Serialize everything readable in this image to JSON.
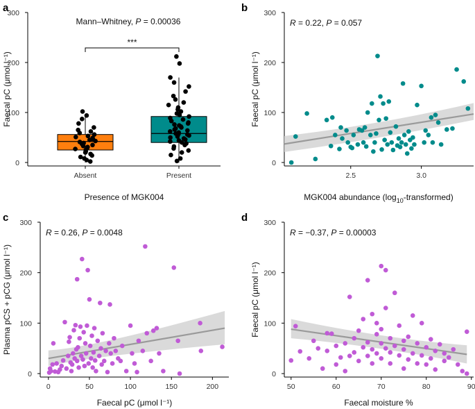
{
  "chart_data": [
    {
      "panel": "a",
      "type": "box",
      "title": "",
      "annotation": {
        "prefix": "Mann–Whitney, ",
        "p_symbol": "P",
        "p_value": " = 0.00036"
      },
      "significance": "***",
      "xlabel": "Presence of MGK004",
      "ylabel": "Faecal pC (μmol l⁻¹)",
      "ylim": [
        0,
        300
      ],
      "yticks": [
        0,
        100,
        200,
        300
      ],
      "categories": [
        "Absent",
        "Present"
      ],
      "box_stats": [
        {
          "name": "Absent",
          "q1": 25,
          "median": 42,
          "q3": 56,
          "whisker_low": 0,
          "whisker_high": 93,
          "color": "#ff7f0e"
        },
        {
          "name": "Present",
          "q1": 40,
          "median": 58,
          "q3": 92,
          "whisker_low": 0,
          "whisker_high": 170,
          "color": "#008b8b"
        }
      ],
      "points": [
        [
          1,
          2
        ],
        [
          1,
          5
        ],
        [
          1,
          8
        ],
        [
          1,
          11
        ],
        [
          1,
          14
        ],
        [
          1,
          17
        ],
        [
          1,
          20
        ],
        [
          1,
          22
        ],
        [
          1,
          25
        ],
        [
          1,
          27
        ],
        [
          1,
          29
        ],
        [
          1,
          31
        ],
        [
          1,
          33
        ],
        [
          1,
          35
        ],
        [
          1,
          37
        ],
        [
          1,
          39
        ],
        [
          1,
          41
        ],
        [
          1,
          43
        ],
        [
          1,
          45
        ],
        [
          1,
          47
        ],
        [
          1,
          49
        ],
        [
          1,
          51
        ],
        [
          1,
          53
        ],
        [
          1,
          56
        ],
        [
          1,
          59
        ],
        [
          1,
          62
        ],
        [
          1,
          65
        ],
        [
          1,
          70
        ],
        [
          1,
          78
        ],
        [
          1,
          87
        ],
        [
          1,
          94
        ],
        [
          1,
          102
        ],
        [
          2,
          3
        ],
        [
          2,
          8
        ],
        [
          2,
          15
        ],
        [
          2,
          20
        ],
        [
          2,
          24
        ],
        [
          2,
          28
        ],
        [
          2,
          32
        ],
        [
          2,
          35
        ],
        [
          2,
          38
        ],
        [
          2,
          40
        ],
        [
          2,
          42
        ],
        [
          2,
          44
        ],
        [
          2,
          46
        ],
        [
          2,
          48
        ],
        [
          2,
          50
        ],
        [
          2,
          52
        ],
        [
          2,
          54
        ],
        [
          2,
          56
        ],
        [
          2,
          57
        ],
        [
          2,
          58
        ],
        [
          2,
          60
        ],
        [
          2,
          62
        ],
        [
          2,
          64
        ],
        [
          2,
          66
        ],
        [
          2,
          68
        ],
        [
          2,
          70
        ],
        [
          2,
          72
        ],
        [
          2,
          74
        ],
        [
          2,
          76
        ],
        [
          2,
          78
        ],
        [
          2,
          80
        ],
        [
          2,
          83
        ],
        [
          2,
          86
        ],
        [
          2,
          89
        ],
        [
          2,
          92
        ],
        [
          2,
          95
        ],
        [
          2,
          98
        ],
        [
          2,
          102
        ],
        [
          2,
          106
        ],
        [
          2,
          110
        ],
        [
          2,
          115
        ],
        [
          2,
          120
        ],
        [
          2,
          126
        ],
        [
          2,
          133
        ],
        [
          2,
          142
        ],
        [
          2,
          152
        ],
        [
          2,
          160
        ],
        [
          2,
          170
        ],
        [
          2,
          198
        ],
        [
          2,
          212
        ]
      ],
      "point_color": "#000000"
    },
    {
      "panel": "b",
      "type": "scatter",
      "annotation": {
        "r_symbol": "R",
        "r_value": " = 0.22, ",
        "p_symbol": "P",
        "p_value": " = 0.057"
      },
      "xlabel_main": "MGK004 abundance (log",
      "xlabel_sub": "10",
      "xlabel_end": "-transformed)",
      "ylabel": "Faecal pC (μmol l⁻¹)",
      "xlim": [
        2.03,
        3.37
      ],
      "ylim": [
        0,
        300
      ],
      "xticks": [
        2.5,
        3.0
      ],
      "xtick_labels": [
        "2.5",
        "3.0"
      ],
      "yticks": [
        0,
        100,
        200,
        300
      ],
      "point_color": "#008b8b",
      "fit": {
        "x0": 2.03,
        "y0": 37,
        "x1": 3.37,
        "y1": 97,
        "ci_low": [
          21,
          85
        ],
        "ci_mid": 52,
        "ci_high": [
          53,
          119
        ],
        "x_mid": 2.7,
        "ci_mid_low": 47,
        "ci_mid_high": 75
      },
      "points": [
        [
          2.08,
          0
        ],
        [
          2.11,
          52
        ],
        [
          2.19,
          98
        ],
        [
          2.25,
          7
        ],
        [
          2.33,
          85
        ],
        [
          2.36,
          33
        ],
        [
          2.37,
          90
        ],
        [
          2.39,
          55
        ],
        [
          2.42,
          27
        ],
        [
          2.43,
          70
        ],
        [
          2.44,
          48
        ],
        [
          2.47,
          64
        ],
        [
          2.48,
          40
        ],
        [
          2.5,
          31
        ],
        [
          2.51,
          29
        ],
        [
          2.52,
          55
        ],
        [
          2.55,
          36
        ],
        [
          2.56,
          66
        ],
        [
          2.58,
          64
        ],
        [
          2.59,
          40
        ],
        [
          2.6,
          70
        ],
        [
          2.61,
          32
        ],
        [
          2.62,
          100
        ],
        [
          2.64,
          55
        ],
        [
          2.65,
          118
        ],
        [
          2.66,
          22
        ],
        [
          2.67,
          40
        ],
        [
          2.68,
          58
        ],
        [
          2.69,
          213
        ],
        [
          2.7,
          85
        ],
        [
          2.71,
          132
        ],
        [
          2.72,
          26
        ],
        [
          2.73,
          118
        ],
        [
          2.74,
          45
        ],
        [
          2.75,
          88
        ],
        [
          2.76,
          36
        ],
        [
          2.77,
          122
        ],
        [
          2.78,
          60
        ],
        [
          2.79,
          40
        ],
        [
          2.8,
          25
        ],
        [
          2.82,
          72
        ],
        [
          2.83,
          34
        ],
        [
          2.84,
          48
        ],
        [
          2.85,
          31
        ],
        [
          2.86,
          40
        ],
        [
          2.87,
          158
        ],
        [
          2.88,
          55
        ],
        [
          2.89,
          36
        ],
        [
          2.9,
          18
        ],
        [
          2.91,
          62
        ],
        [
          2.92,
          45
        ],
        [
          2.93,
          28
        ],
        [
          2.94,
          50
        ],
        [
          2.95,
          36
        ],
        [
          2.97,
          115
        ],
        [
          3.0,
          153
        ],
        [
          3.02,
          40
        ],
        [
          3.03,
          64
        ],
        [
          3.05,
          55
        ],
        [
          3.07,
          90
        ],
        [
          3.08,
          40
        ],
        [
          3.1,
          95
        ],
        [
          3.12,
          80
        ],
        [
          3.14,
          36
        ],
        [
          3.18,
          66
        ],
        [
          3.22,
          68
        ],
        [
          3.25,
          186
        ],
        [
          3.3,
          162
        ],
        [
          3.33,
          108
        ]
      ]
    },
    {
      "panel": "c",
      "type": "scatter",
      "annotation": {
        "r_symbol": "R",
        "r_value": " = 0.26, ",
        "p_symbol": "P",
        "p_value": " = 0.0048"
      },
      "xlabel": "Faecal pC (μmol l⁻¹)",
      "ylabel": "Plasma pCS + pCG (μmol l⁻¹)",
      "xlim": [
        -10,
        220
      ],
      "ylim": [
        0,
        300
      ],
      "xticks": [
        0,
        50,
        100,
        150,
        200
      ],
      "yticks": [
        0,
        100,
        200,
        300
      ],
      "point_color": "#c05bd6",
      "fit": {
        "x0": 0,
        "y0": 30,
        "x1": 215,
        "y1": 90,
        "ci_low": [
          15,
          58
        ],
        "ci_high": [
          46,
          124
        ],
        "x_mid": 50,
        "ci_mid_low": 34,
        "ci_mid_high": 50
      },
      "points": [
        [
          1,
          2
        ],
        [
          2,
          10
        ],
        [
          3,
          5
        ],
        [
          5,
          18
        ],
        [
          6,
          60
        ],
        [
          8,
          4
        ],
        [
          10,
          20
        ],
        [
          12,
          3
        ],
        [
          14,
          8
        ],
        [
          16,
          15
        ],
        [
          18,
          26
        ],
        [
          20,
          102
        ],
        [
          22,
          10
        ],
        [
          24,
          35
        ],
        [
          25,
          63
        ],
        [
          26,
          72
        ],
        [
          27,
          22
        ],
        [
          28,
          5
        ],
        [
          29,
          18
        ],
        [
          30,
          40
        ],
        [
          31,
          86
        ],
        [
          32,
          30
        ],
        [
          33,
          96
        ],
        [
          34,
          48
        ],
        [
          35,
          187
        ],
        [
          35,
          25
        ],
        [
          36,
          52
        ],
        [
          37,
          12
        ],
        [
          38,
          70
        ],
        [
          39,
          93
        ],
        [
          40,
          35
        ],
        [
          41,
          227
        ],
        [
          42,
          28
        ],
        [
          43,
          82
        ],
        [
          44,
          15
        ],
        [
          45,
          60
        ],
        [
          46,
          40
        ],
        [
          47,
          95
        ],
        [
          48,
          205
        ],
        [
          49,
          20
        ],
        [
          50,
          147
        ],
        [
          51,
          55
        ],
        [
          52,
          30
        ],
        [
          53,
          75
        ],
        [
          54,
          12
        ],
        [
          55,
          42
        ],
        [
          56,
          90
        ],
        [
          57,
          26
        ],
        [
          58,
          5
        ],
        [
          60,
          65
        ],
        [
          62,
          35
        ],
        [
          63,
          140
        ],
        [
          64,
          50
        ],
        [
          65,
          18
        ],
        [
          66,
          80
        ],
        [
          68,
          25
        ],
        [
          70,
          45
        ],
        [
          72,
          3
        ],
        [
          74,
          60
        ],
        [
          75,
          137
        ],
        [
          76,
          40
        ],
        [
          78,
          20
        ],
        [
          80,
          70
        ],
        [
          82,
          45
        ],
        [
          85,
          30
        ],
        [
          88,
          25
        ],
        [
          90,
          55
        ],
        [
          95,
          5
        ],
        [
          100,
          95
        ],
        [
          102,
          40
        ],
        [
          105,
          20
        ],
        [
          108,
          3
        ],
        [
          110,
          65
        ],
        [
          115,
          45
        ],
        [
          118,
          252
        ],
        [
          120,
          80
        ],
        [
          125,
          25
        ],
        [
          128,
          85
        ],
        [
          132,
          90
        ],
        [
          135,
          40
        ],
        [
          140,
          5
        ],
        [
          153,
          210
        ],
        [
          158,
          65
        ],
        [
          160,
          0
        ],
        [
          185,
          100
        ],
        [
          186,
          45
        ],
        [
          212,
          53
        ]
      ]
    },
    {
      "panel": "d",
      "type": "scatter",
      "annotation": {
        "r_symbol": "R",
        "r_value": " = −0.37, ",
        "p_symbol": "P",
        "p_value": " = 0.00003"
      },
      "xlabel": "Faecal moisture %",
      "ylabel": "Faecal pC (μmol l⁻¹)",
      "xlim": [
        48.5,
        90.5
      ],
      "ylim": [
        0,
        300
      ],
      "xticks": [
        50,
        60,
        70,
        80,
        90
      ],
      "yticks": [
        0,
        100,
        200,
        300
      ],
      "point_color": "#c05bd6",
      "fit": {
        "x0": 50,
        "y0": 88,
        "x1": 89,
        "y1": 38,
        "ci_low": [
          70,
          20
        ],
        "ci_high": [
          108,
          56
        ],
        "x_mid": 70,
        "ci_mid_low": 54,
        "ci_mid_high": 70
      },
      "points": [
        [
          50,
          26
        ],
        [
          51,
          94
        ],
        [
          52,
          44
        ],
        [
          54,
          30
        ],
        [
          55,
          65
        ],
        [
          56,
          50
        ],
        [
          57,
          10
        ],
        [
          58,
          80
        ],
        [
          58,
          45
        ],
        [
          59,
          79
        ],
        [
          60,
          18
        ],
        [
          60,
          55
        ],
        [
          61,
          32
        ],
        [
          62,
          60
        ],
        [
          62,
          5
        ],
        [
          63,
          35
        ],
        [
          63,
          152
        ],
        [
          64,
          70
        ],
        [
          64,
          42
        ],
        [
          65,
          25
        ],
        [
          65,
          85
        ],
        [
          66,
          108
        ],
        [
          66,
          52
        ],
        [
          67,
          185
        ],
        [
          67,
          35
        ],
        [
          67,
          62
        ],
        [
          68,
          48
        ],
        [
          68,
          118
        ],
        [
          68,
          20
        ],
        [
          69,
          78
        ],
        [
          69,
          40
        ],
        [
          69,
          100
        ],
        [
          70,
          213
        ],
        [
          70,
          60
        ],
        [
          70,
          30
        ],
        [
          70,
          88
        ],
        [
          71,
          205
        ],
        [
          71,
          50
        ],
        [
          71,
          130
        ],
        [
          72,
          70
        ],
        [
          72,
          20
        ],
        [
          72,
          42
        ],
        [
          73,
          160
        ],
        [
          73,
          55
        ],
        [
          74,
          95
        ],
        [
          74,
          36
        ],
        [
          75,
          65
        ],
        [
          75,
          10
        ],
        [
          75,
          48
        ],
        [
          76,
          73
        ],
        [
          76,
          28
        ],
        [
          77,
          115
        ],
        [
          77,
          40
        ],
        [
          78,
          60
        ],
        [
          78,
          20
        ],
        [
          79,
          100
        ],
        [
          79,
          36
        ],
        [
          80,
          52
        ],
        [
          80,
          18
        ],
        [
          81,
          68
        ],
        [
          81,
          30
        ],
        [
          82,
          45
        ],
        [
          82,
          8
        ],
        [
          83,
          58
        ],
        [
          84,
          25
        ],
        [
          84,
          40
        ],
        [
          85,
          32
        ],
        [
          86,
          48
        ],
        [
          87,
          18
        ],
        [
          88,
          5
        ],
        [
          89,
          0
        ],
        [
          89,
          83
        ]
      ]
    }
  ]
}
